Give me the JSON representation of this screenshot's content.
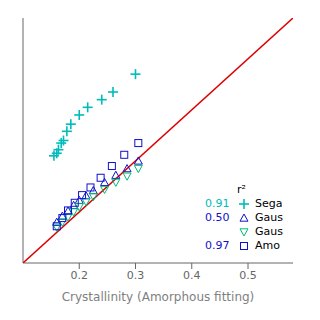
{
  "chart_data": {
    "type": "scatter",
    "xlabel": "Crystallinity (Amorphous fitting)",
    "xlim": [
      0.1,
      0.58
    ],
    "ylim": [
      0.1,
      0.58
    ],
    "xticks": [
      0.2,
      0.3,
      0.4,
      0.5
    ],
    "tick_labels": "x",
    "grid": false,
    "legend": "lower right",
    "legend_title": "r²",
    "series": [
      {
        "type": "line",
        "color": "#DD0000",
        "line_style": "solid",
        "x": [
          0.1,
          0.58
        ],
        "y": [
          0.1,
          0.58
        ]
      },
      {
        "name": "Sega",
        "type": "scatter",
        "color": "#00BBBB",
        "marker": "plus",
        "r2": 0.91,
        "x": [
          0.155,
          0.16,
          0.163,
          0.168,
          0.172,
          0.178,
          0.185,
          0.2,
          0.215,
          0.24,
          0.26,
          0.3
        ],
        "y": [
          0.31,
          0.315,
          0.322,
          0.335,
          0.34,
          0.358,
          0.372,
          0.39,
          0.405,
          0.42,
          0.435,
          0.47
        ]
      },
      {
        "name": "Gaus",
        "type": "scatter",
        "color": "#1111CC",
        "marker": "triangle-up",
        "r2": {
          "value": 0.5,
          "label": "0.50"
        },
        "x": [
          0.16,
          0.17,
          0.18,
          0.19,
          0.2,
          0.212,
          0.225,
          0.245,
          0.265,
          0.285,
          0.305
        ],
        "y": [
          0.18,
          0.192,
          0.202,
          0.213,
          0.223,
          0.232,
          0.242,
          0.258,
          0.272,
          0.285,
          0.3
        ]
      },
      {
        "name": "Gaus",
        "type": "scatter",
        "color": "#00BB77",
        "marker": "triangle-down",
        "x": [
          0.16,
          0.17,
          0.18,
          0.19,
          0.2,
          0.212,
          0.225,
          0.245,
          0.265,
          0.285,
          0.305
        ],
        "y": [
          0.17,
          0.18,
          0.19,
          0.2,
          0.21,
          0.22,
          0.23,
          0.244,
          0.258,
          0.27,
          0.285
        ]
      },
      {
        "name": "Amo",
        "type": "scatter",
        "color": "#1111CC",
        "marker": "square",
        "r2": 0.97,
        "x": [
          0.16,
          0.17,
          0.18,
          0.192,
          0.205,
          0.22,
          0.238,
          0.258,
          0.28,
          0.305
        ],
        "y": [
          0.172,
          0.188,
          0.203,
          0.218,
          0.233,
          0.248,
          0.267,
          0.29,
          0.312,
          0.335
        ]
      }
    ]
  }
}
